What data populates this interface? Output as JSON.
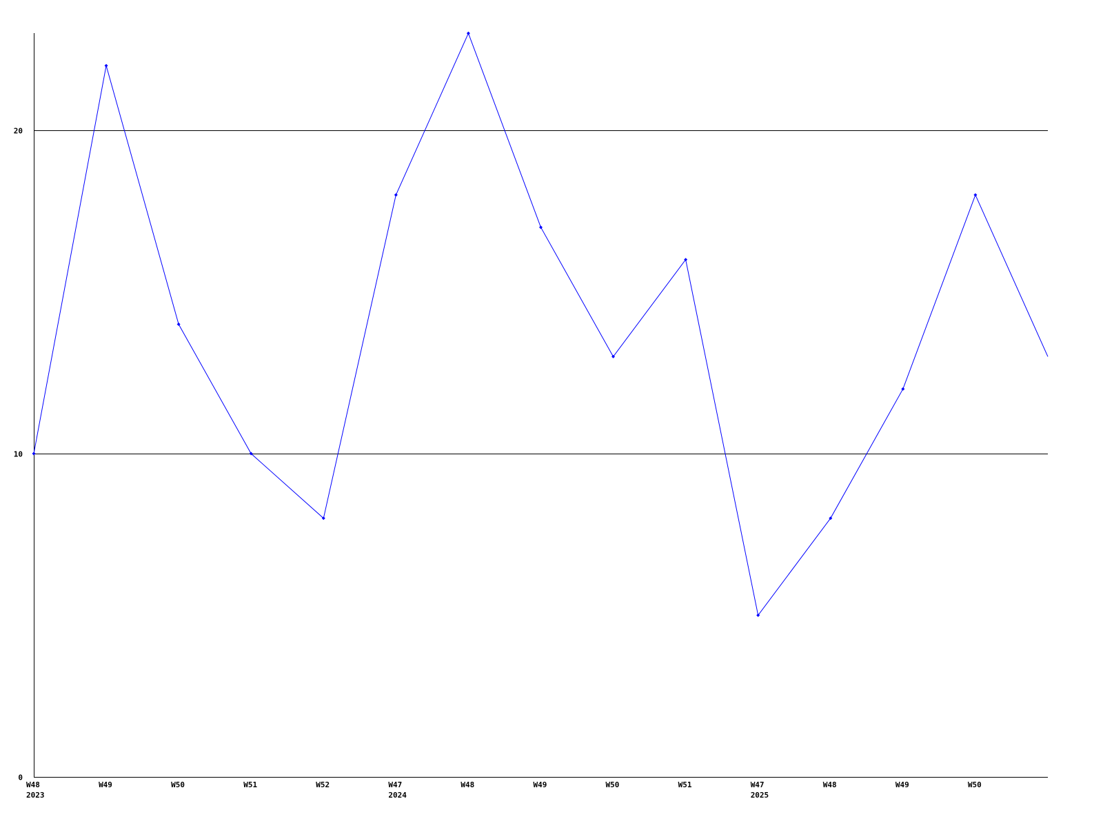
{
  "chart_data": {
    "type": "line",
    "title": "",
    "xlabel": "",
    "ylabel": "",
    "ylim": [
      0,
      23
    ],
    "yticks": [
      0,
      10,
      20
    ],
    "grid": true,
    "line_color": "#0000ff",
    "categories": [
      {
        "week": "W48",
        "year": "2023"
      },
      {
        "week": "W49",
        "year": ""
      },
      {
        "week": "W50",
        "year": ""
      },
      {
        "week": "W51",
        "year": ""
      },
      {
        "week": "W52",
        "year": ""
      },
      {
        "week": "W47",
        "year": "2024"
      },
      {
        "week": "W48",
        "year": ""
      },
      {
        "week": "W49",
        "year": ""
      },
      {
        "week": "W50",
        "year": ""
      },
      {
        "week": "W51",
        "year": ""
      },
      {
        "week": "W47",
        "year": "2025"
      },
      {
        "week": "W48",
        "year": ""
      },
      {
        "week": "W49",
        "year": ""
      },
      {
        "week": "W50",
        "year": ""
      },
      {
        "week": "",
        "year": ""
      }
    ],
    "values": [
      10,
      22,
      14,
      10,
      8,
      18,
      23,
      17,
      13,
      16,
      5,
      8,
      12,
      18,
      13
    ]
  }
}
